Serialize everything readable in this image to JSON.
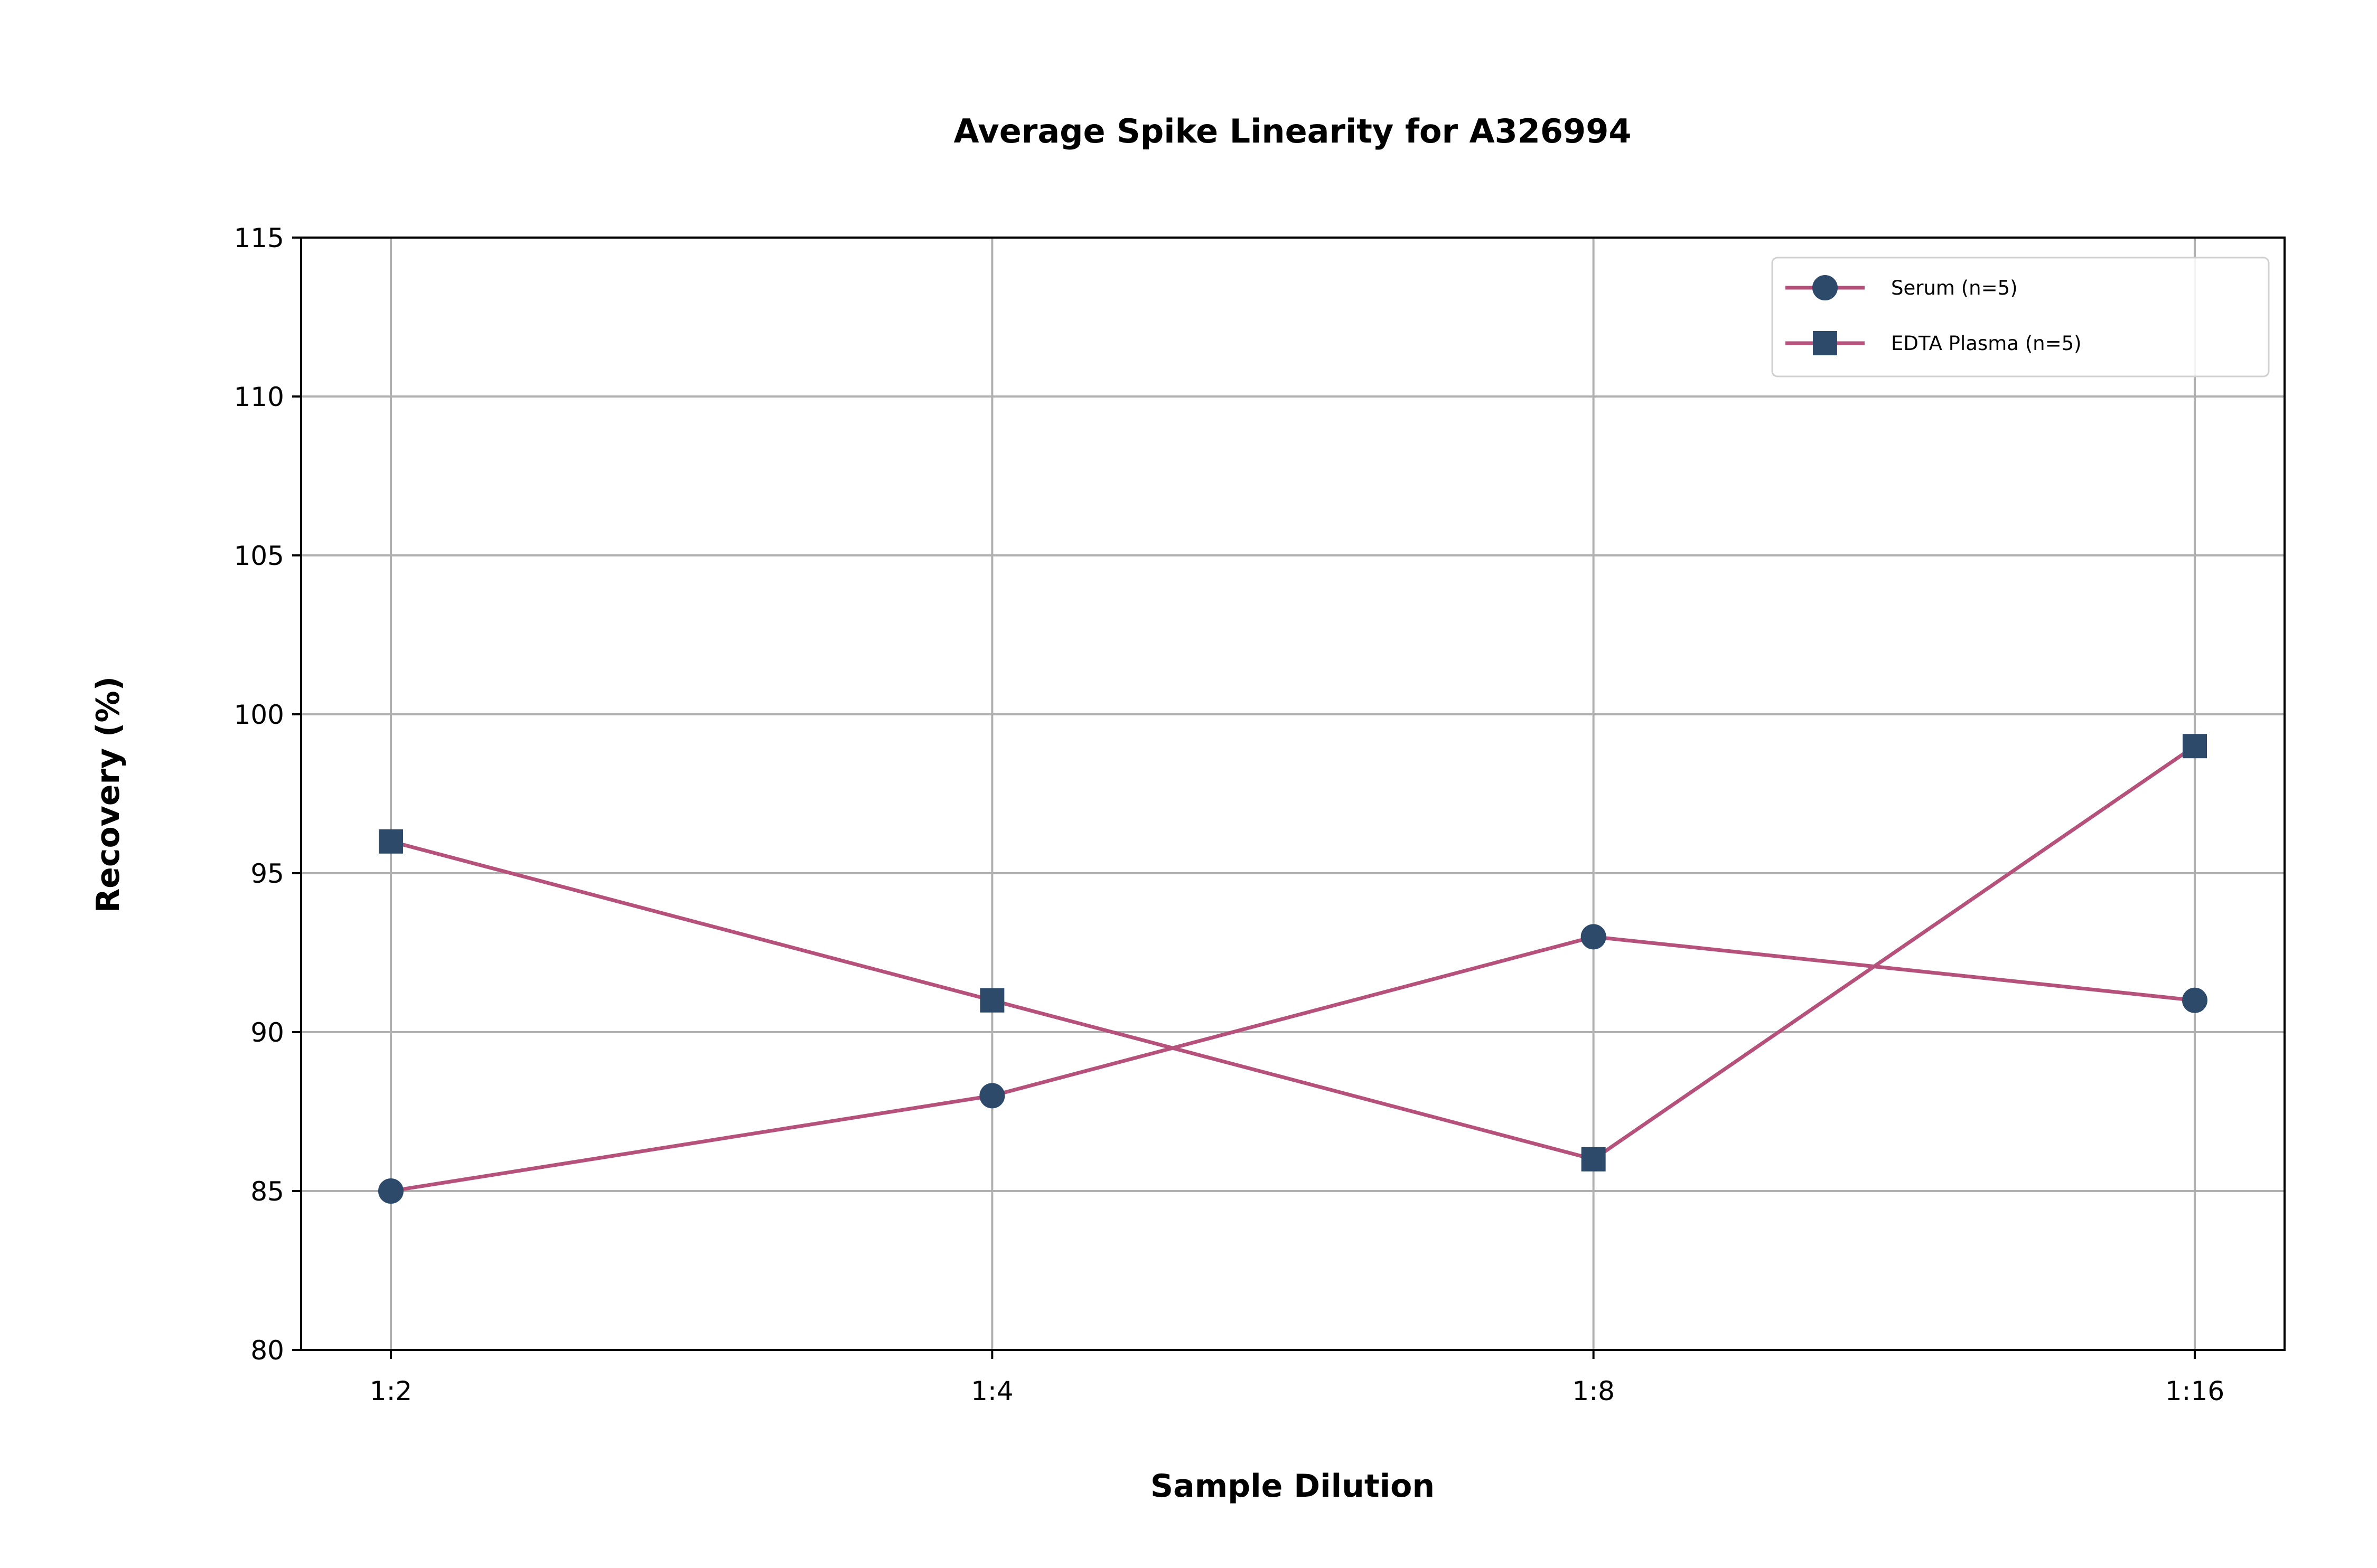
{
  "chart_data": {
    "type": "line",
    "title": "Average Spike Linearity for A326994",
    "xlabel": "Sample Dilution",
    "ylabel": "Recovery (%)",
    "categories": [
      "1:2",
      "1:4",
      "1:8",
      "1:16"
    ],
    "ylim": [
      80,
      115
    ],
    "yticks": [
      80,
      85,
      90,
      95,
      100,
      105,
      110,
      115
    ],
    "grid": true,
    "legend_position": "top-right",
    "series": [
      {
        "name": "Serum (n=5)",
        "values": [
          85,
          88,
          93,
          91
        ],
        "marker": "circle"
      },
      {
        "name": "EDTA Plasma (n=5)",
        "values": [
          96,
          91,
          86,
          99
        ],
        "marker": "square"
      }
    ],
    "colors": {
      "line": "#b5517a",
      "marker": "#2e4a6b",
      "grid": "#b0b0b0",
      "axis": "#000000"
    }
  }
}
